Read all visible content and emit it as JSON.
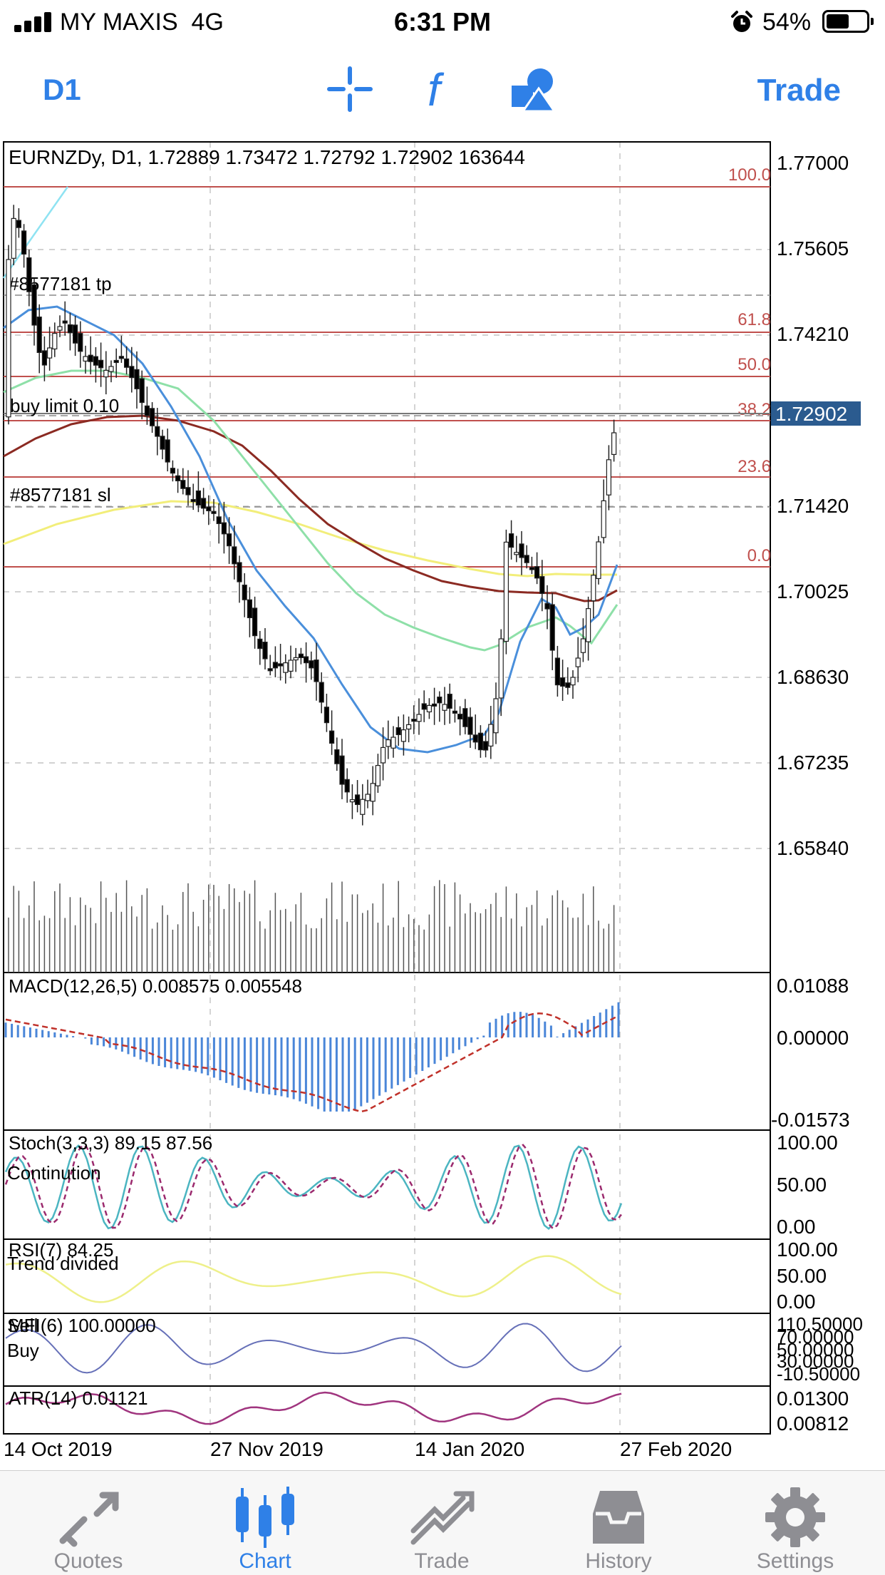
{
  "status_bar": {
    "carrier": "MY MAXIS",
    "network": "4G",
    "time": "6:31 PM",
    "battery": "54%"
  },
  "toolbar": {
    "timeframe": "D1",
    "trade": "Trade",
    "tools": [
      "crosshair-icon",
      "function-icon",
      "shapes-icon"
    ]
  },
  "chart": {
    "header": "EURNZDy, D1, 1.72889 1.73472 1.72792 1.72902 163644",
    "price_axis": [
      "1.77000",
      "1.75605",
      "1.74210",
      "1.72902",
      "1.71420",
      "1.70025",
      "1.68630",
      "1.67235",
      "1.65840"
    ],
    "current_price": "1.72902",
    "fib_levels": [
      "100.0",
      "61.8",
      "50.0",
      "38.2",
      "23.6",
      "0.0"
    ],
    "order_labels": {
      "tp": "#8577181 tp",
      "buy_limit": "buy limit 0.10",
      "sl": "#8577181 sl"
    },
    "dates": [
      "14 Oct 2019",
      "27 Nov 2019",
      "14 Jan 2020",
      "27 Feb 2020"
    ],
    "colors": {
      "bull": "#ffffff",
      "bear": "#000000",
      "fib": "#c0504d",
      "ma_blue": "#4a8fdb",
      "ma_green": "#8ee0a8",
      "ma_red": "#8b2a22",
      "ma_yellow": "#f2ee7a",
      "cur_price_bg": "#2b5b8f"
    }
  },
  "indicators": {
    "macd": {
      "label": "MACD(12,26,5) 0.008575 0.005548",
      "axis": [
        "0.01088",
        "0.00000",
        "-0.01573"
      ]
    },
    "stoch": {
      "label": "Stoch(3,3,3) 89.15 87.56",
      "note": "Continution",
      "axis": [
        "100.00",
        "50.00",
        "0.00"
      ]
    },
    "rsi": {
      "label": "RSI(7) 84.25",
      "note": "Trend divided",
      "axis": [
        "100.00",
        "50.00",
        "0.00"
      ]
    },
    "mfi": {
      "label": "MFI(6) 100.00000",
      "note_sell": "Sell",
      "note_buy": "Buy",
      "axis": [
        "110.50000",
        "70.00000",
        "50.00000",
        "30.00000",
        "-10.50000"
      ]
    },
    "atr": {
      "label": "ATR(14) 0.01121",
      "axis": [
        "0.01300",
        "0.00812"
      ]
    }
  },
  "tabs": [
    {
      "label": "Quotes",
      "icon": "quotes-icon",
      "active": false
    },
    {
      "label": "Chart",
      "icon": "chart-icon",
      "active": true
    },
    {
      "label": "Trade",
      "icon": "trade-icon",
      "active": false
    },
    {
      "label": "History",
      "icon": "history-icon",
      "active": false
    },
    {
      "label": "Settings",
      "icon": "settings-icon",
      "active": false
    }
  ]
}
